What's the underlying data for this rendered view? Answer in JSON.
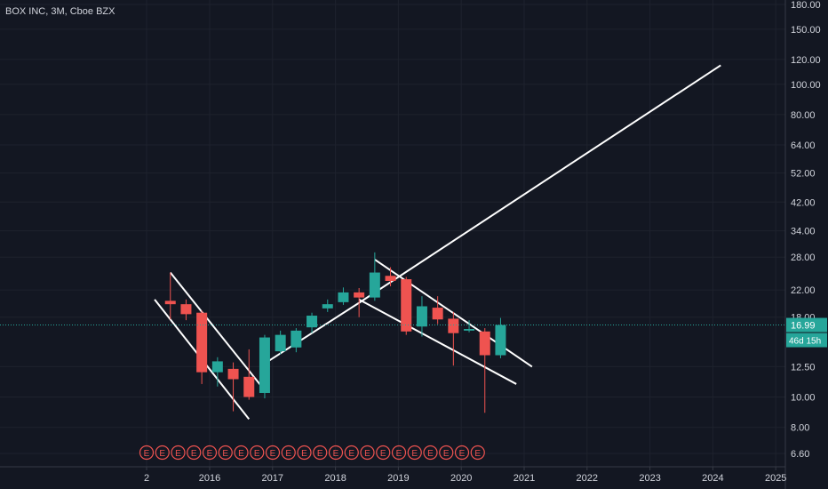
{
  "symbol_title": "BOX INC, 3M, Cboe BZX",
  "colors": {
    "background": "#131722",
    "grid": "#1e222d",
    "axis_text": "#d1d4dc",
    "up": "#26a69a",
    "down": "#ef5350",
    "trendline": "#ffffff",
    "price_line": "#26a69a"
  },
  "chart_data": {
    "type": "candlestick",
    "title": "BOX INC, 3M, Cboe BZX",
    "y_scale": "log",
    "ylim": [
      5.8,
      195
    ],
    "price_ticks": [
      "180.00",
      "150.00",
      "120.00",
      "100.00",
      "80.00",
      "64.00",
      "52.00",
      "42.00",
      "34.00",
      "28.00",
      "22.00",
      "18.00",
      "12.50",
      "10.00",
      "8.00",
      "6.60"
    ],
    "time_ticks": [
      "2",
      "2016",
      "2017",
      "2018",
      "2019",
      "2020",
      "2021",
      "2022",
      "2023",
      "2024",
      "2025"
    ],
    "current_price": "16.99",
    "countdown": "46d 15h",
    "candles": [
      {
        "q": "2015Q2",
        "open": 20.3,
        "high": 25,
        "low": 17.7,
        "close": 19.8
      },
      {
        "q": "2015Q3",
        "open": 19.8,
        "high": 20.5,
        "low": 17.6,
        "close": 18.4
      },
      {
        "q": "2015Q4",
        "open": 18.6,
        "high": 18.9,
        "low": 11.0,
        "close": 12.0
      },
      {
        "q": "2016Q1",
        "open": 12.0,
        "high": 13.4,
        "low": 10.8,
        "close": 13.0
      },
      {
        "q": "2016Q2",
        "open": 12.3,
        "high": 12.9,
        "low": 9.0,
        "close": 11.4
      },
      {
        "q": "2016Q3",
        "open": 11.6,
        "high": 14.2,
        "low": 9.8,
        "close": 10.0
      },
      {
        "q": "2016Q4",
        "open": 10.3,
        "high": 15.8,
        "low": 9.9,
        "close": 15.5
      },
      {
        "q": "2017Q1",
        "open": 14.0,
        "high": 16.3,
        "low": 13.7,
        "close": 15.8
      },
      {
        "q": "2017Q2",
        "open": 14.4,
        "high": 16.6,
        "low": 13.9,
        "close": 16.3
      },
      {
        "q": "2017Q3",
        "open": 16.7,
        "high": 18.6,
        "low": 16.0,
        "close": 18.2
      },
      {
        "q": "2017Q4",
        "open": 19.2,
        "high": 20.5,
        "low": 18.7,
        "close": 19.8
      },
      {
        "q": "2018Q1",
        "open": 20.1,
        "high": 22.4,
        "low": 19.7,
        "close": 21.6
      },
      {
        "q": "2018Q2",
        "open": 21.6,
        "high": 22.3,
        "low": 18.0,
        "close": 20.8
      },
      {
        "q": "2018Q3",
        "open": 20.8,
        "high": 29.0,
        "low": 20.3,
        "close": 25.0
      },
      {
        "q": "2018Q4",
        "open": 24.4,
        "high": 26.0,
        "low": 22.6,
        "close": 23.5
      },
      {
        "q": "2019Q1",
        "open": 23.8,
        "high": 24.2,
        "low": 15.8,
        "close": 16.2
      },
      {
        "q": "2019Q2",
        "open": 16.8,
        "high": 21.0,
        "low": 15.6,
        "close": 19.5
      },
      {
        "q": "2019Q3",
        "open": 19.3,
        "high": 21.0,
        "low": 17.1,
        "close": 17.7
      },
      {
        "q": "2019Q4",
        "open": 17.8,
        "high": 18.7,
        "low": 12.6,
        "close": 16.0
      },
      {
        "q": "2020Q1",
        "open": 16.3,
        "high": 17.6,
        "low": 16.1,
        "close": 16.5
      },
      {
        "q": "2020Q2",
        "open": 16.2,
        "high": 16.6,
        "low": 8.9,
        "close": 13.6
      },
      {
        "q": "2020Q3",
        "open": 13.6,
        "high": 17.9,
        "low": 13.3,
        "close": 16.99
      }
    ],
    "trendlines": [
      {
        "from": [
          "2015Q1",
          20.5
        ],
        "to": [
          "2016Q3",
          8.5
        ]
      },
      {
        "from": [
          "2015Q2",
          25.0
        ],
        "to": [
          "2016Q4",
          10.5
        ]
      },
      {
        "from": [
          "2016Q4",
          12.8
        ],
        "to": [
          "2018Q2",
          20.0
        ]
      },
      {
        "from": [
          "2018Q2",
          20.5
        ],
        "to": [
          "2020Q4",
          11.0
        ]
      },
      {
        "from": [
          "2018Q3",
          27.5
        ],
        "to": [
          "2021Q1",
          12.5
        ]
      },
      {
        "from": [
          "2018Q2",
          20.0
        ],
        "to": [
          "2024Q1",
          115.0
        ]
      }
    ],
    "earnings_markers": {
      "label": "E",
      "count": 22
    }
  }
}
